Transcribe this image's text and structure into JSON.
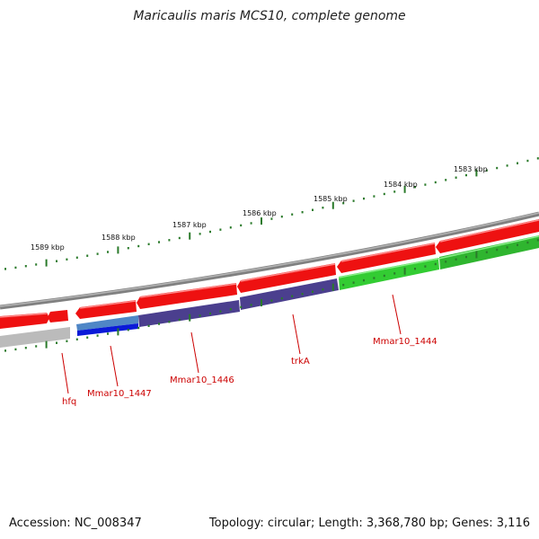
{
  "title": "Maricaulis maris MCS10, complete genome",
  "footer": {
    "accession": "Accession: NC_008347",
    "summary": "Topology: circular; Length: 3,368,780 bp; Genes: 3,116"
  },
  "scale_labels": [
    "1589 kbp",
    "1588 kbp",
    "1587 kbp",
    "1586 kbp",
    "1585 kbp",
    "1584 kbp",
    "1583 kbp"
  ],
  "gene_labels": [
    "hfq",
    "Mmar10_1447",
    "Mmar10_1446",
    "trkA",
    "Mmar10_1444"
  ],
  "colors": {
    "forward_cds": "#ee1111",
    "blue_light": "#4f86c6",
    "blue_dark": "#0a1ad8",
    "purple": "#4b3f8e",
    "green": "#33cc33",
    "backbone": "#808080",
    "lower_backbone": "#bbbbbb",
    "tick": "#2a7a2a",
    "label": "#cc0000"
  }
}
